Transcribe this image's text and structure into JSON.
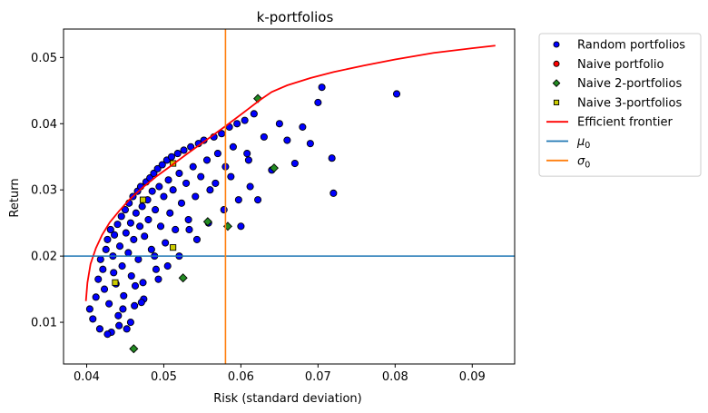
{
  "chart_data": {
    "type": "scatter",
    "title": "k-portfolios",
    "xlabel": "Risk (standard deviation)",
    "ylabel": "Return",
    "xlim": [
      0.037,
      0.0955
    ],
    "ylim": [
      0.0037,
      0.0543
    ],
    "xticks": [
      0.04,
      0.05,
      0.06,
      0.07,
      0.08,
      0.09
    ],
    "xtick_labels": [
      "0.04",
      "0.05",
      "0.06",
      "0.07",
      "0.08",
      "0.09"
    ],
    "yticks": [
      0.01,
      0.02,
      0.03,
      0.04,
      0.05
    ],
    "ytick_labels": [
      "0.01",
      "0.02",
      "0.03",
      "0.04",
      "0.05"
    ],
    "grid": false,
    "legend_position": "outside-top-right",
    "colors": {
      "random": "#0000ff",
      "naive": "#ff0000",
      "naive2": "#228b22",
      "naive3": "#cccc00",
      "frontier": "#ff0000",
      "mu0": "#1f77b4",
      "sigma0": "#ff7f0e"
    },
    "series": [
      {
        "name": "Random portfolios",
        "marker": "circle",
        "color": "#0000ff",
        "points": [
          [
            0.0404,
            0.012
          ],
          [
            0.0408,
            0.0105
          ],
          [
            0.0412,
            0.0138
          ],
          [
            0.0415,
            0.0165
          ],
          [
            0.0418,
            0.0195
          ],
          [
            0.0421,
            0.018
          ],
          [
            0.0423,
            0.015
          ],
          [
            0.0425,
            0.021
          ],
          [
            0.0427,
            0.0225
          ],
          [
            0.0429,
            0.0128
          ],
          [
            0.0431,
            0.024
          ],
          [
            0.0432,
            0.0085
          ],
          [
            0.0434,
            0.02
          ],
          [
            0.0436,
            0.0232
          ],
          [
            0.0438,
            0.0158
          ],
          [
            0.044,
            0.0248
          ],
          [
            0.0441,
            0.011
          ],
          [
            0.0443,
            0.0215
          ],
          [
            0.0445,
            0.026
          ],
          [
            0.0446,
            0.0185
          ],
          [
            0.0448,
            0.014
          ],
          [
            0.045,
            0.027
          ],
          [
            0.0451,
            0.0235
          ],
          [
            0.0452,
            0.009
          ],
          [
            0.0454,
            0.0205
          ],
          [
            0.0455,
            0.028
          ],
          [
            0.0457,
            0.025
          ],
          [
            0.0458,
            0.017
          ],
          [
            0.046,
            0.029
          ],
          [
            0.0461,
            0.0225
          ],
          [
            0.0462,
            0.0125
          ],
          [
            0.0464,
            0.0265
          ],
          [
            0.0466,
            0.0298
          ],
          [
            0.0467,
            0.0195
          ],
          [
            0.0469,
            0.0245
          ],
          [
            0.047,
            0.0305
          ],
          [
            0.0472,
            0.0275
          ],
          [
            0.0474,
            0.0135
          ],
          [
            0.0475,
            0.023
          ],
          [
            0.0477,
            0.0312
          ],
          [
            0.0479,
            0.0285
          ],
          [
            0.048,
            0.0255
          ],
          [
            0.0482,
            0.0318
          ],
          [
            0.0484,
            0.021
          ],
          [
            0.0485,
            0.0298
          ],
          [
            0.0487,
            0.0325
          ],
          [
            0.0489,
            0.027
          ],
          [
            0.049,
            0.018
          ],
          [
            0.0492,
            0.0332
          ],
          [
            0.0494,
            0.0305
          ],
          [
            0.0496,
            0.0245
          ],
          [
            0.0498,
            0.0338
          ],
          [
            0.05,
            0.029
          ],
          [
            0.0502,
            0.022
          ],
          [
            0.0504,
            0.0345
          ],
          [
            0.0506,
            0.0315
          ],
          [
            0.0508,
            0.0265
          ],
          [
            0.051,
            0.035
          ],
          [
            0.0512,
            0.03
          ],
          [
            0.0515,
            0.024
          ],
          [
            0.0518,
            0.0355
          ],
          [
            0.052,
            0.0325
          ],
          [
            0.0523,
            0.028
          ],
          [
            0.0526,
            0.036
          ],
          [
            0.0529,
            0.031
          ],
          [
            0.0532,
            0.0255
          ],
          [
            0.0535,
            0.0365
          ],
          [
            0.0538,
            0.0335
          ],
          [
            0.0541,
            0.029
          ],
          [
            0.0545,
            0.037
          ],
          [
            0.0548,
            0.032
          ],
          [
            0.0552,
            0.0375
          ],
          [
            0.0556,
            0.0345
          ],
          [
            0.056,
            0.03
          ],
          [
            0.0565,
            0.038
          ],
          [
            0.057,
            0.0355
          ],
          [
            0.0575,
            0.0385
          ],
          [
            0.058,
            0.0335
          ],
          [
            0.0585,
            0.0395
          ],
          [
            0.059,
            0.0365
          ],
          [
            0.0595,
            0.04
          ],
          [
            0.06,
            0.0245
          ],
          [
            0.0605,
            0.0405
          ],
          [
            0.061,
            0.0345
          ],
          [
            0.0617,
            0.0415
          ],
          [
            0.0622,
            0.0285
          ],
          [
            0.063,
            0.038
          ],
          [
            0.064,
            0.033
          ],
          [
            0.065,
            0.04
          ],
          [
            0.066,
            0.0375
          ],
          [
            0.067,
            0.034
          ],
          [
            0.068,
            0.0395
          ],
          [
            0.069,
            0.037
          ],
          [
            0.07,
            0.0432
          ],
          [
            0.0705,
            0.0455
          ],
          [
            0.0718,
            0.0348
          ],
          [
            0.072,
            0.0295
          ],
          [
            0.0802,
            0.0445
          ],
          [
            0.0435,
            0.0175
          ],
          [
            0.0447,
            0.012
          ],
          [
            0.0463,
            0.0155
          ],
          [
            0.0473,
            0.016
          ],
          [
            0.0488,
            0.02
          ],
          [
            0.0505,
            0.0185
          ],
          [
            0.052,
            0.02
          ],
          [
            0.0543,
            0.0225
          ],
          [
            0.0558,
            0.025
          ],
          [
            0.0578,
            0.027
          ],
          [
            0.0597,
            0.0285
          ],
          [
            0.0457,
            0.01
          ],
          [
            0.0442,
            0.0095
          ],
          [
            0.0427,
            0.0082
          ],
          [
            0.0417,
            0.009
          ],
          [
            0.0471,
            0.013
          ],
          [
            0.0493,
            0.0165
          ],
          [
            0.0533,
            0.024
          ],
          [
            0.0567,
            0.031
          ],
          [
            0.0587,
            0.032
          ],
          [
            0.0612,
            0.0305
          ],
          [
            0.0608,
            0.0355
          ]
        ]
      },
      {
        "name": "Naive portfolio",
        "marker": "circle",
        "color": "#ff0000",
        "points": []
      },
      {
        "name": "Naive 2-portfolios",
        "marker": "diamond",
        "color": "#228b22",
        "points": [
          [
            0.0461,
            0.006
          ],
          [
            0.0525,
            0.0167
          ],
          [
            0.0557,
            0.0252
          ],
          [
            0.0583,
            0.0245
          ],
          [
            0.0622,
            0.0438
          ],
          [
            0.0643,
            0.0333
          ]
        ]
      },
      {
        "name": "Naive 3-portfolios",
        "marker": "square",
        "color": "#cccc00",
        "points": [
          [
            0.0437,
            0.016
          ],
          [
            0.0473,
            0.0285
          ],
          [
            0.0512,
            0.034
          ],
          [
            0.0512,
            0.0213
          ]
        ]
      }
    ],
    "frontier": {
      "name": "Efficient frontier",
      "color": "#ff0000",
      "points": [
        [
          0.0399,
          0.0132
        ],
        [
          0.0401,
          0.016
        ],
        [
          0.0405,
          0.0188
        ],
        [
          0.0412,
          0.0212
        ],
        [
          0.042,
          0.0232
        ],
        [
          0.043,
          0.0251
        ],
        [
          0.0442,
          0.0268
        ],
        [
          0.0456,
          0.0286
        ],
        [
          0.0472,
          0.0303
        ],
        [
          0.049,
          0.032
        ],
        [
          0.051,
          0.0337
        ],
        [
          0.0532,
          0.0356
        ],
        [
          0.0556,
          0.0376
        ],
        [
          0.0582,
          0.0398
        ],
        [
          0.0607,
          0.042
        ],
        [
          0.0625,
          0.0436
        ],
        [
          0.064,
          0.0448
        ],
        [
          0.066,
          0.0458
        ],
        [
          0.069,
          0.0469
        ],
        [
          0.072,
          0.0478
        ],
        [
          0.076,
          0.0488
        ],
        [
          0.08,
          0.0497
        ],
        [
          0.085,
          0.0507
        ],
        [
          0.09,
          0.0514
        ],
        [
          0.093,
          0.0518
        ]
      ]
    },
    "mu0": {
      "name": "μ0",
      "value": 0.02,
      "color": "#1f77b4"
    },
    "sigma0": {
      "name": "σ0",
      "value": 0.058,
      "color": "#ff7f0e"
    },
    "legend": [
      {
        "label": "Random portfolios",
        "kind": "circle",
        "color": "#0000ff"
      },
      {
        "label": "Naive portfolio",
        "kind": "circle",
        "color": "#ff0000"
      },
      {
        "label": "Naive 2-portfolios",
        "kind": "diamond",
        "color": "#228b22"
      },
      {
        "label": "Naive 3-portfolios",
        "kind": "square",
        "color": "#cccc00"
      },
      {
        "label": "Efficient frontier",
        "kind": "line",
        "color": "#ff0000"
      },
      {
        "label": "μ0",
        "kind": "line",
        "color": "#1f77b4",
        "math": "μ",
        "sub": "0"
      },
      {
        "label": "σ0",
        "kind": "line",
        "color": "#ff7f0e",
        "math": "σ",
        "sub": "0"
      }
    ]
  }
}
